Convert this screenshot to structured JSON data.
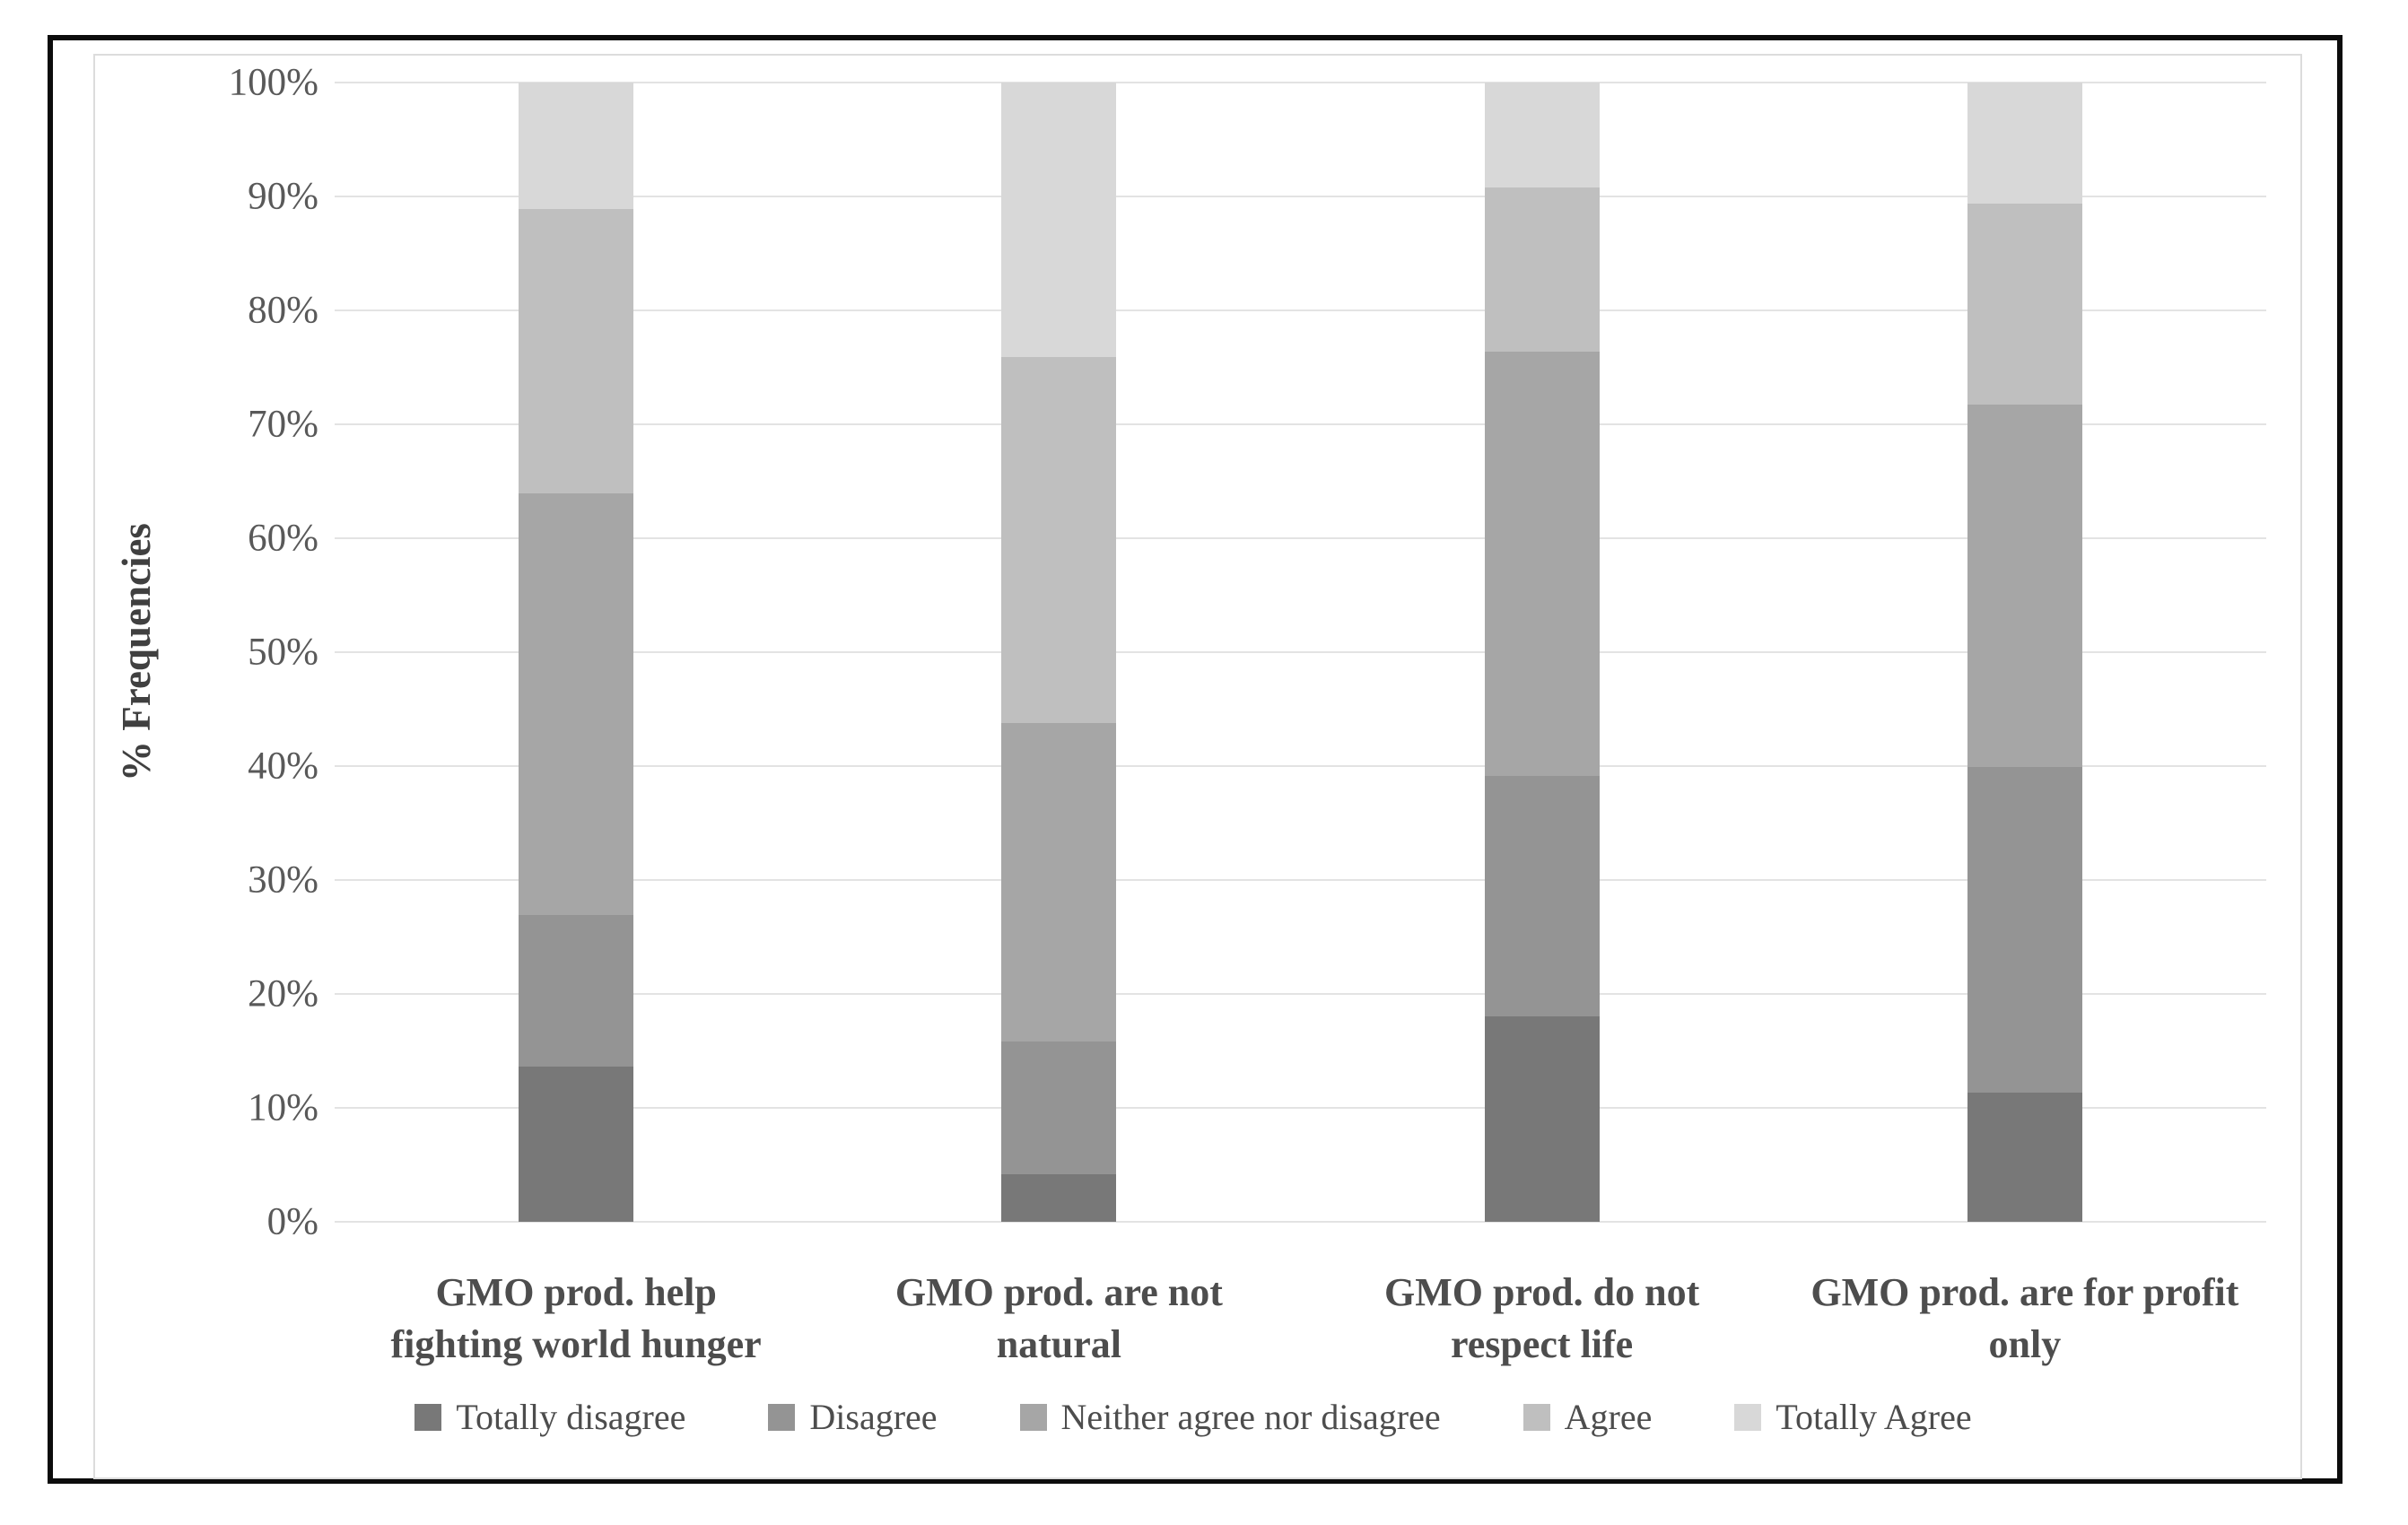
{
  "chart_data": {
    "type": "bar",
    "subtype": "stacked-100",
    "title": "",
    "xlabel": "",
    "ylabel": "% Frequencies",
    "ylim": [
      0,
      100
    ],
    "ytick_step": 10,
    "ytick_labels": [
      "0%",
      "10%",
      "20%",
      "30%",
      "40%",
      "50%",
      "60%",
      "70%",
      "80%",
      "90%",
      "100%"
    ],
    "grid": true,
    "legend_position": "bottom",
    "categories": [
      "GMO prod. help\nfighting world hunger",
      "GMO prod. are not\nnatural",
      "GMO prod. do not\nrespect life",
      "GMO prod. are for profit\nonly"
    ],
    "series": [
      {
        "name": "Totally disagree",
        "color": "#787878",
        "values": [
          13.6,
          4.2,
          18.0,
          11.3
        ]
      },
      {
        "name": "Disagree",
        "color": "#949494",
        "values": [
          13.3,
          11.6,
          21.1,
          28.6
        ]
      },
      {
        "name": "Neither agree nor disagree",
        "color": "#a6a6a6",
        "values": [
          37.0,
          28.0,
          37.3,
          31.8
        ]
      },
      {
        "name": "Agree",
        "color": "#bfbfbf",
        "values": [
          25.0,
          32.1,
          14.4,
          17.7
        ]
      },
      {
        "name": "Totally Agree",
        "color": "#d8d8d8",
        "values": [
          11.1,
          24.1,
          9.2,
          10.6
        ]
      }
    ]
  },
  "colors": {
    "frame_border": "#0c0c0c",
    "chart_border": "#dcdcdc",
    "gridline": "#e3e3e3",
    "tick_text": "#595959",
    "label_text": "#4d4d4d",
    "background": "#ffffff"
  }
}
